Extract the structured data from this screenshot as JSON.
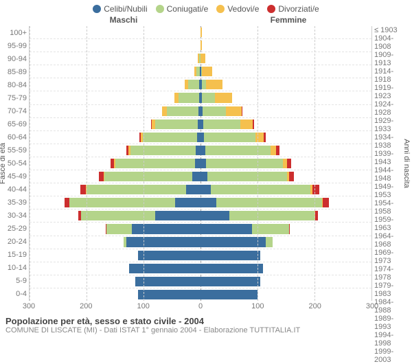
{
  "legend": [
    {
      "label": "Celibi/Nubili",
      "color": "#3b6e9e"
    },
    {
      "label": "Coniugati/e",
      "color": "#b4d48a"
    },
    {
      "label": "Vedovi/e",
      "color": "#f5c04e"
    },
    {
      "label": "Divorziati/e",
      "color": "#cc2e2e"
    }
  ],
  "headers": {
    "male": "Maschi",
    "female": "Femmine"
  },
  "axis_labels": {
    "left": "Fasce di età",
    "right": "Anni di nascita"
  },
  "x_axis": {
    "max": 300,
    "ticks": [
      300,
      200,
      100,
      0,
      100,
      200,
      300
    ]
  },
  "colors": {
    "celibi": "#3b6e9e",
    "coniugati": "#b4d48a",
    "vedovi": "#f5c04e",
    "divorziati": "#cc2e2e",
    "grid": "#cccccc",
    "background": "#ffffff",
    "text": "#555555"
  },
  "footer": {
    "title": "Popolazione per età, sesso e stato civile - 2004",
    "subtitle": "COMUNE DI LISCATE (MI) - Dati ISTAT 1° gennaio 2004 - Elaborazione TUTTITALIA.IT"
  },
  "rows": [
    {
      "age": "100+",
      "birth": "≤ 1903",
      "m": {
        "cel": 0,
        "con": 0,
        "ved": 0,
        "div": 0
      },
      "f": {
        "cel": 0,
        "con": 0,
        "ved": 2,
        "div": 0
      }
    },
    {
      "age": "95-99",
      "birth": "1904-1908",
      "m": {
        "cel": 0,
        "con": 0,
        "ved": 0,
        "div": 0
      },
      "f": {
        "cel": 0,
        "con": 0,
        "ved": 3,
        "div": 0
      }
    },
    {
      "age": "90-94",
      "birth": "1909-1913",
      "m": {
        "cel": 0,
        "con": 2,
        "ved": 3,
        "div": 0
      },
      "f": {
        "cel": 0,
        "con": 0,
        "ved": 8,
        "div": 0
      }
    },
    {
      "age": "85-89",
      "birth": "1914-1918",
      "m": {
        "cel": 1,
        "con": 6,
        "ved": 4,
        "div": 0
      },
      "f": {
        "cel": 1,
        "con": 2,
        "ved": 17,
        "div": 0
      }
    },
    {
      "age": "80-84",
      "birth": "1919-1923",
      "m": {
        "cel": 2,
        "con": 20,
        "ved": 6,
        "div": 0
      },
      "f": {
        "cel": 2,
        "con": 8,
        "ved": 28,
        "div": 0
      }
    },
    {
      "age": "75-79",
      "birth": "1924-1928",
      "m": {
        "cel": 3,
        "con": 35,
        "ved": 8,
        "div": 0
      },
      "f": {
        "cel": 3,
        "con": 22,
        "ved": 30,
        "div": 0
      }
    },
    {
      "age": "70-74",
      "birth": "1929-1933",
      "m": {
        "cel": 4,
        "con": 55,
        "ved": 8,
        "div": 0
      },
      "f": {
        "cel": 4,
        "con": 40,
        "ved": 28,
        "div": 1
      }
    },
    {
      "age": "65-69",
      "birth": "1934-1938",
      "m": {
        "cel": 5,
        "con": 75,
        "ved": 6,
        "div": 1
      },
      "f": {
        "cel": 5,
        "con": 65,
        "ved": 22,
        "div": 2
      }
    },
    {
      "age": "60-64",
      "birth": "1939-1943",
      "m": {
        "cel": 6,
        "con": 95,
        "ved": 4,
        "div": 2
      },
      "f": {
        "cel": 6,
        "con": 90,
        "ved": 15,
        "div": 3
      }
    },
    {
      "age": "55-59",
      "birth": "1944-1948",
      "m": {
        "cel": 8,
        "con": 115,
        "ved": 3,
        "div": 4
      },
      "f": {
        "cel": 8,
        "con": 115,
        "ved": 10,
        "div": 5
      }
    },
    {
      "age": "50-54",
      "birth": "1949-1953",
      "m": {
        "cel": 10,
        "con": 140,
        "ved": 2,
        "div": 6
      },
      "f": {
        "cel": 10,
        "con": 135,
        "ved": 7,
        "div": 7
      }
    },
    {
      "age": "45-49",
      "birth": "1954-1958",
      "m": {
        "cel": 14,
        "con": 155,
        "ved": 1,
        "div": 8
      },
      "f": {
        "cel": 12,
        "con": 140,
        "ved": 4,
        "div": 8
      }
    },
    {
      "age": "40-44",
      "birth": "1959-1963",
      "m": {
        "cel": 25,
        "con": 175,
        "ved": 1,
        "div": 10
      },
      "f": {
        "cel": 18,
        "con": 175,
        "ved": 3,
        "div": 12
      }
    },
    {
      "age": "35-39",
      "birth": "1964-1968",
      "m": {
        "cel": 45,
        "con": 185,
        "ved": 0,
        "div": 8
      },
      "f": {
        "cel": 28,
        "con": 185,
        "ved": 2,
        "div": 10
      }
    },
    {
      "age": "30-34",
      "birth": "1969-1973",
      "m": {
        "cel": 80,
        "con": 130,
        "ved": 0,
        "div": 4
      },
      "f": {
        "cel": 50,
        "con": 150,
        "ved": 1,
        "div": 5
      }
    },
    {
      "age": "25-29",
      "birth": "1974-1978",
      "m": {
        "cel": 120,
        "con": 45,
        "ved": 0,
        "div": 1
      },
      "f": {
        "cel": 90,
        "con": 65,
        "ved": 0,
        "div": 2
      }
    },
    {
      "age": "20-24",
      "birth": "1979-1983",
      "m": {
        "cel": 130,
        "con": 5,
        "ved": 0,
        "div": 0
      },
      "f": {
        "cel": 115,
        "con": 12,
        "ved": 0,
        "div": 0
      }
    },
    {
      "age": "15-19",
      "birth": "1984-1988",
      "m": {
        "cel": 110,
        "con": 0,
        "ved": 0,
        "div": 0
      },
      "f": {
        "cel": 105,
        "con": 0,
        "ved": 0,
        "div": 0
      }
    },
    {
      "age": "10-14",
      "birth": "1989-1993",
      "m": {
        "cel": 125,
        "con": 0,
        "ved": 0,
        "div": 0
      },
      "f": {
        "cel": 110,
        "con": 0,
        "ved": 0,
        "div": 0
      }
    },
    {
      "age": "5-9",
      "birth": "1994-1998",
      "m": {
        "cel": 115,
        "con": 0,
        "ved": 0,
        "div": 0
      },
      "f": {
        "cel": 105,
        "con": 0,
        "ved": 0,
        "div": 0
      }
    },
    {
      "age": "0-4",
      "birth": "1999-2003",
      "m": {
        "cel": 110,
        "con": 0,
        "ved": 0,
        "div": 0
      },
      "f": {
        "cel": 100,
        "con": 0,
        "ved": 0,
        "div": 0
      }
    }
  ]
}
